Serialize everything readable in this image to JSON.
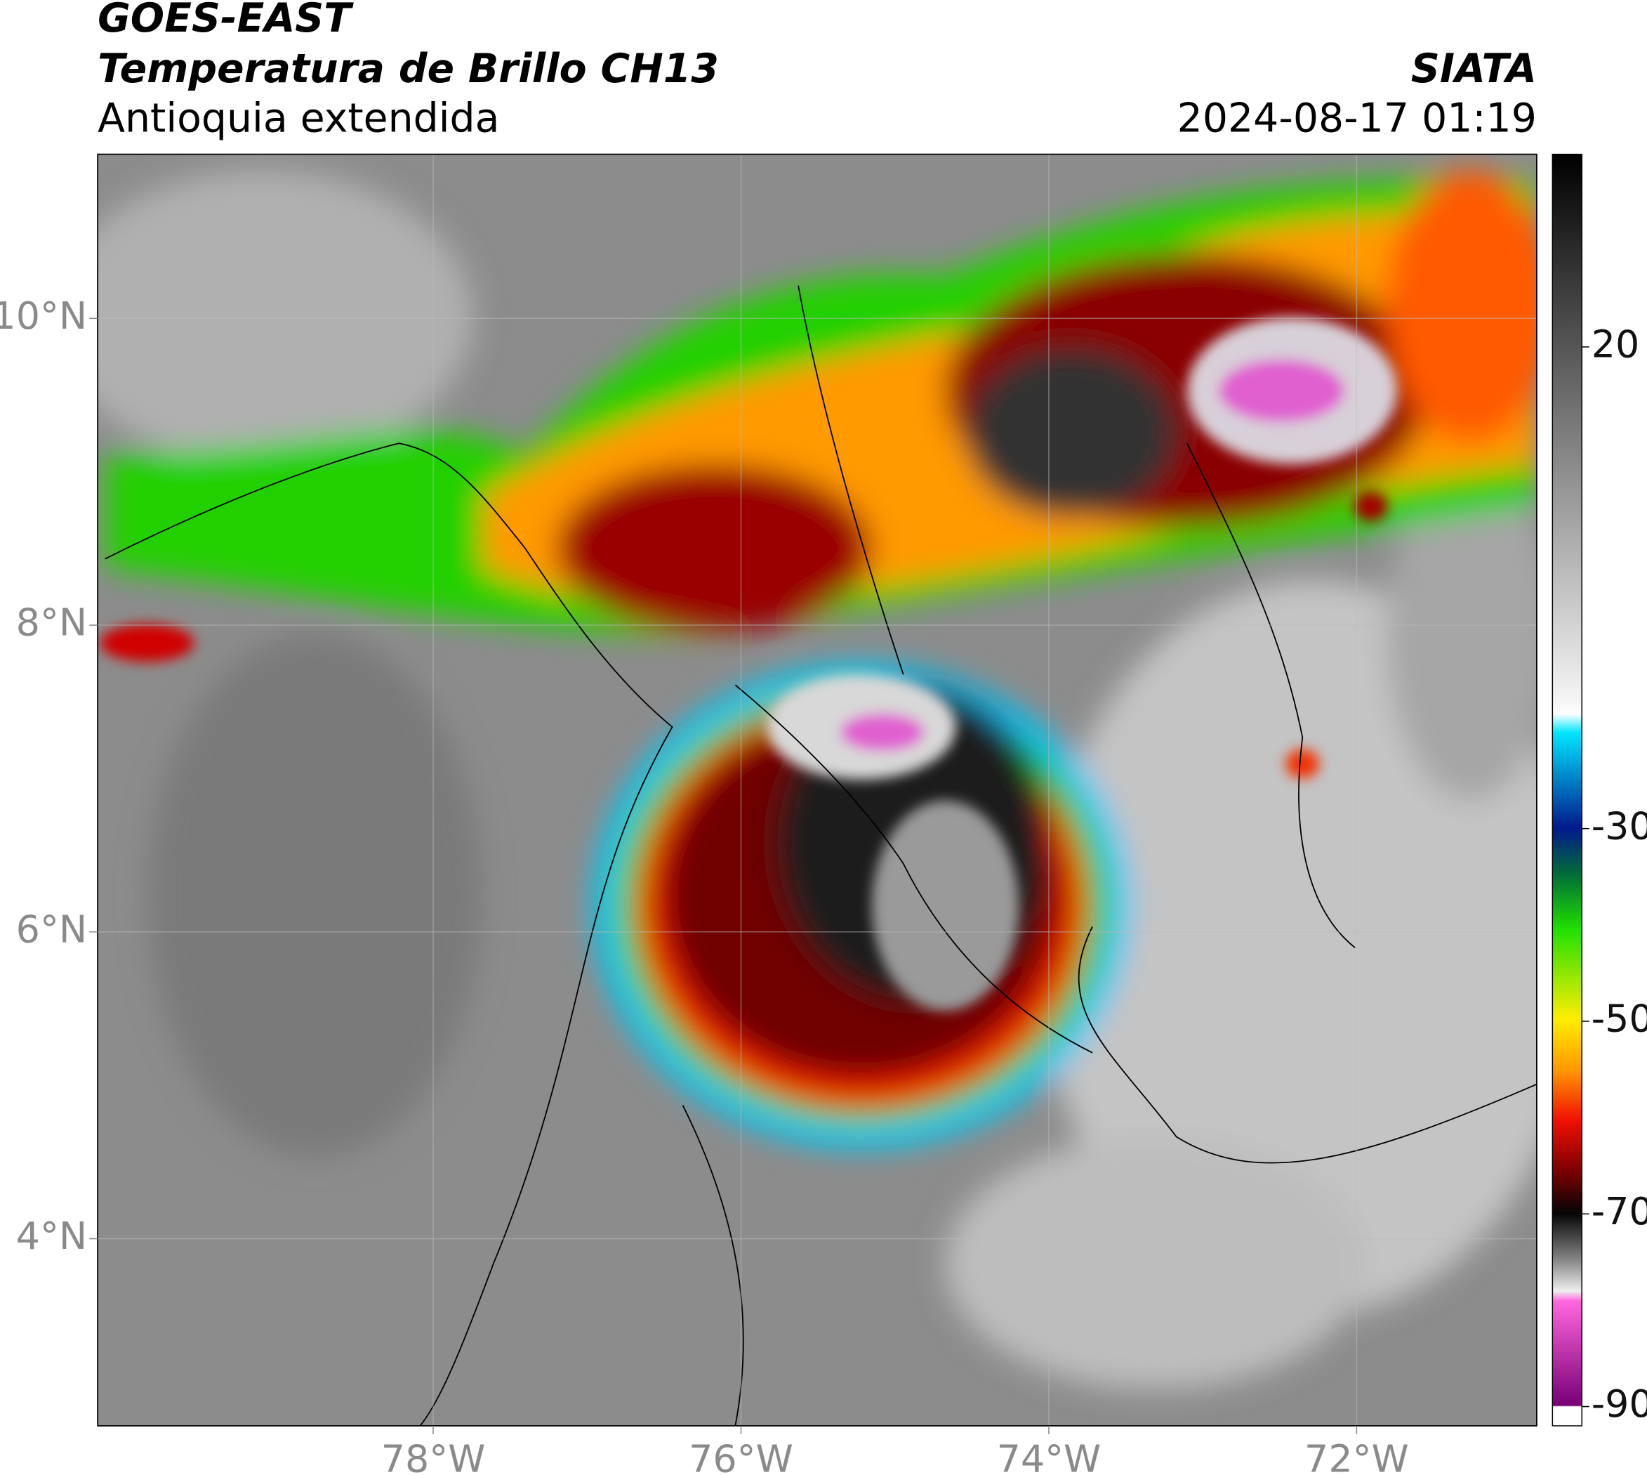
{
  "header": {
    "title": "GOES-EAST",
    "subtitle": "Temperatura de Brillo CH13",
    "region": "Antioquia extendida",
    "source": "SIATA",
    "datetime": "2024-08-17 01:19"
  },
  "map": {
    "xlim": [
      -80.18,
      -70.83
    ],
    "ylim": [
      2.78,
      11.07
    ],
    "xticks": [
      {
        "value": -78,
        "label": "78°W"
      },
      {
        "value": -76,
        "label": "76°W"
      },
      {
        "value": -74,
        "label": "74°W"
      },
      {
        "value": -72,
        "label": "72°W"
      }
    ],
    "yticks": [
      {
        "value": 10,
        "label": "10°N"
      },
      {
        "value": 8,
        "label": "8°N"
      },
      {
        "value": 6,
        "label": "6°N"
      },
      {
        "value": 4,
        "label": "4°N"
      }
    ],
    "grid": true
  },
  "colorbar": {
    "clim": [
      -92,
      40
    ],
    "ticks": [
      20,
      -30,
      -50,
      -70,
      -90
    ]
  }
}
